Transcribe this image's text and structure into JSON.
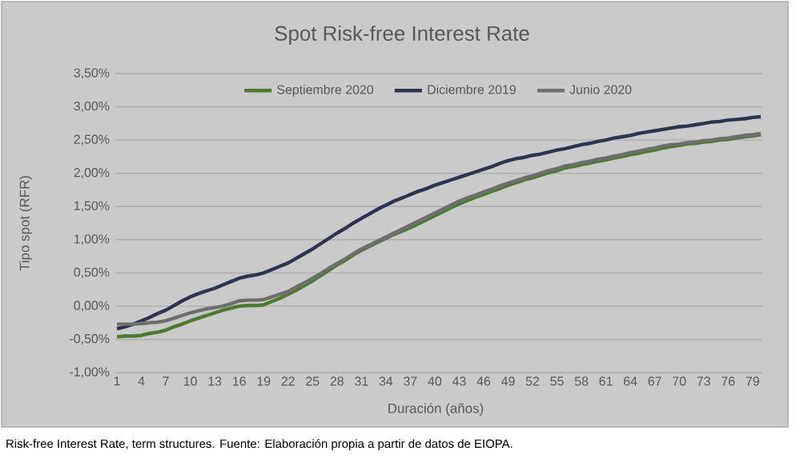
{
  "chart_data": {
    "type": "line",
    "title": "Spot Risk-free Interest Rate",
    "xlabel": "Duración (años)",
    "ylabel": "Tipo spot (RFR)",
    "annotations": [
      "Risk-free Interest Rate, term structures. Fuente: Elaboración propia a partir de datos de EIOPA."
    ],
    "categories": [
      "1",
      null,
      null,
      "4",
      null,
      null,
      "7",
      null,
      null,
      "10",
      null,
      null,
      "13",
      null,
      null,
      "16",
      null,
      null,
      "19",
      null,
      null,
      "22",
      null,
      null,
      "25",
      null,
      null,
      "28",
      null,
      null,
      "31",
      null,
      null,
      "34",
      null,
      null,
      "37",
      null,
      null,
      "40",
      null,
      null,
      "43",
      null,
      null,
      "46",
      null,
      null,
      "49",
      null,
      null,
      "52",
      null,
      null,
      "55",
      null,
      null,
      "58",
      null,
      null,
      "61",
      null,
      null,
      "64",
      null,
      null,
      "67",
      null,
      null,
      "70",
      null,
      null,
      "73",
      null,
      null,
      "76",
      null,
      null,
      "79",
      null
    ],
    "series": [
      {
        "name": "Septiembre 2020",
        "color": "#4e7a2e",
        "values": [
          -0.46,
          -0.45,
          -0.45,
          -0.44,
          -0.41,
          -0.39,
          -0.36,
          -0.31,
          -0.27,
          -0.22,
          -0.18,
          -0.14,
          -0.1,
          -0.06,
          -0.03,
          0.0,
          0.01,
          0.01,
          0.02,
          0.07,
          0.12,
          0.18,
          0.24,
          0.31,
          0.38,
          0.46,
          0.54,
          0.62,
          0.69,
          0.77,
          0.84,
          0.9,
          0.96,
          1.02,
          1.08,
          1.13,
          1.18,
          1.24,
          1.3,
          1.36,
          1.42,
          1.48,
          1.54,
          1.59,
          1.64,
          1.68,
          1.73,
          1.77,
          1.82,
          1.86,
          1.9,
          1.93,
          1.97,
          2.01,
          2.04,
          2.08,
          2.1,
          2.13,
          2.15,
          2.18,
          2.2,
          2.23,
          2.25,
          2.28,
          2.3,
          2.33,
          2.35,
          2.38,
          2.4,
          2.42,
          2.44,
          2.45,
          2.47,
          2.48,
          2.5,
          2.51,
          2.53,
          2.55,
          2.56,
          2.58
        ]
      },
      {
        "name": "Diciembre 2019",
        "color": "#2b3550",
        "values": [
          -0.34,
          -0.31,
          -0.27,
          -0.22,
          -0.17,
          -0.11,
          -0.06,
          0.01,
          0.08,
          0.14,
          0.19,
          0.23,
          0.27,
          0.32,
          0.37,
          0.42,
          0.45,
          0.47,
          0.5,
          0.55,
          0.6,
          0.65,
          0.72,
          0.79,
          0.86,
          0.94,
          1.02,
          1.1,
          1.17,
          1.25,
          1.32,
          1.39,
          1.46,
          1.52,
          1.58,
          1.63,
          1.68,
          1.73,
          1.77,
          1.82,
          1.86,
          1.9,
          1.94,
          1.98,
          2.02,
          2.06,
          2.1,
          2.15,
          2.19,
          2.22,
          2.24,
          2.27,
          2.29,
          2.32,
          2.35,
          2.37,
          2.4,
          2.43,
          2.45,
          2.48,
          2.5,
          2.53,
          2.55,
          2.57,
          2.6,
          2.62,
          2.64,
          2.66,
          2.68,
          2.7,
          2.71,
          2.73,
          2.75,
          2.77,
          2.78,
          2.8,
          2.81,
          2.82,
          2.84,
          2.85
        ]
      },
      {
        "name": "Junio 2020",
        "color": "#6e6e6e",
        "values": [
          -0.27,
          -0.27,
          -0.27,
          -0.26,
          -0.25,
          -0.24,
          -0.22,
          -0.18,
          -0.14,
          -0.1,
          -0.07,
          -0.04,
          -0.02,
          0.0,
          0.04,
          0.08,
          0.09,
          0.09,
          0.1,
          0.14,
          0.18,
          0.22,
          0.29,
          0.35,
          0.42,
          0.49,
          0.57,
          0.64,
          0.71,
          0.79,
          0.86,
          0.92,
          0.98,
          1.04,
          1.1,
          1.16,
          1.22,
          1.28,
          1.34,
          1.4,
          1.46,
          1.52,
          1.58,
          1.63,
          1.67,
          1.72,
          1.76,
          1.81,
          1.85,
          1.89,
          1.93,
          1.96,
          2.0,
          2.04,
          2.07,
          2.11,
          2.13,
          2.16,
          2.18,
          2.21,
          2.23,
          2.26,
          2.28,
          2.31,
          2.33,
          2.36,
          2.38,
          2.41,
          2.43,
          2.44,
          2.46,
          2.47,
          2.49,
          2.5,
          2.52,
          2.53,
          2.55,
          2.57,
          2.58,
          2.6
        ]
      }
    ],
    "ylim": [
      -1.0,
      3.5
    ],
    "yticks": [
      {
        "value": -1.0,
        "label": "-1,00%"
      },
      {
        "value": -0.5,
        "label": "-0,50%"
      },
      {
        "value": 0.0,
        "label": "0,00%"
      },
      {
        "value": 0.5,
        "label": "0,50%"
      },
      {
        "value": 1.0,
        "label": "1,00%"
      },
      {
        "value": 1.5,
        "label": "1,50%"
      },
      {
        "value": 2.0,
        "label": "2,00%"
      },
      {
        "value": 2.5,
        "label": "2,50%"
      },
      {
        "value": 3.0,
        "label": "3,00%"
      },
      {
        "value": 3.5,
        "label": "3,50%"
      }
    ],
    "grid": "y",
    "legend": "top",
    "line_style": "solid"
  }
}
